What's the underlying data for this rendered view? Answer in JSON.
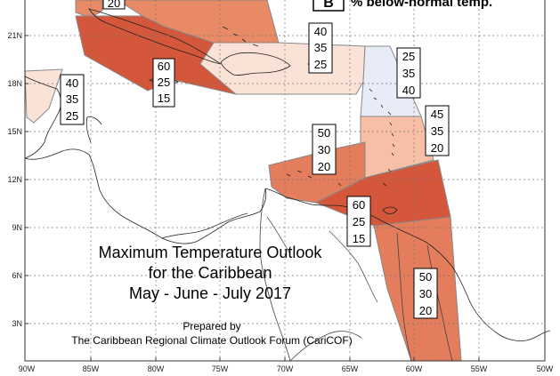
{
  "map": {
    "title_line1": "Maximum Temperature Outlook",
    "title_line2": "for the Caribbean",
    "title_line3": "May - June - July 2017",
    "prepared_line1": "Prepared by",
    "prepared_line2": "The Caribbean Regional Climate Outlook Forum (CariCOF)",
    "legend_letter": "B",
    "legend_text": "% below-normal temp.",
    "lat_ticks": [
      "21N",
      "18N",
      "15N",
      "12N",
      "9N",
      "6N",
      "3N"
    ],
    "lon_ticks": [
      "90W",
      "85W",
      "80W",
      "75W",
      "70W",
      "65W",
      "60W",
      "55W",
      "50W"
    ]
  },
  "regions": [
    {
      "name": "top-strip",
      "probs": [
        "20"
      ],
      "color": "#e98a67"
    },
    {
      "name": "western-caribbean",
      "probs": [
        "60",
        "25",
        "15"
      ],
      "color": "#d4573b"
    },
    {
      "name": "greater-antilles",
      "probs": [
        "40",
        "35",
        "25"
      ],
      "color": "#fbe2d6"
    },
    {
      "name": "leeward-islands",
      "probs": [
        "25",
        "35",
        "40"
      ],
      "color": "#e7ecf8"
    },
    {
      "name": "yucatan-belize",
      "probs": [
        "40",
        "35",
        "25"
      ],
      "color": "#fbe2d6"
    },
    {
      "name": "windward-islands",
      "probs": [
        "45",
        "35",
        "20"
      ],
      "color": "#f7c0a6"
    },
    {
      "name": "abc-islands",
      "probs": [
        "50",
        "30",
        "20"
      ],
      "color": "#e47d5c"
    },
    {
      "name": "trinidad-venezuela",
      "probs": [
        "60",
        "25",
        "15"
      ],
      "color": "#d4573b"
    },
    {
      "name": "guianas",
      "probs": [
        "50",
        "30",
        "20"
      ],
      "color": "#e47d5c"
    }
  ]
}
